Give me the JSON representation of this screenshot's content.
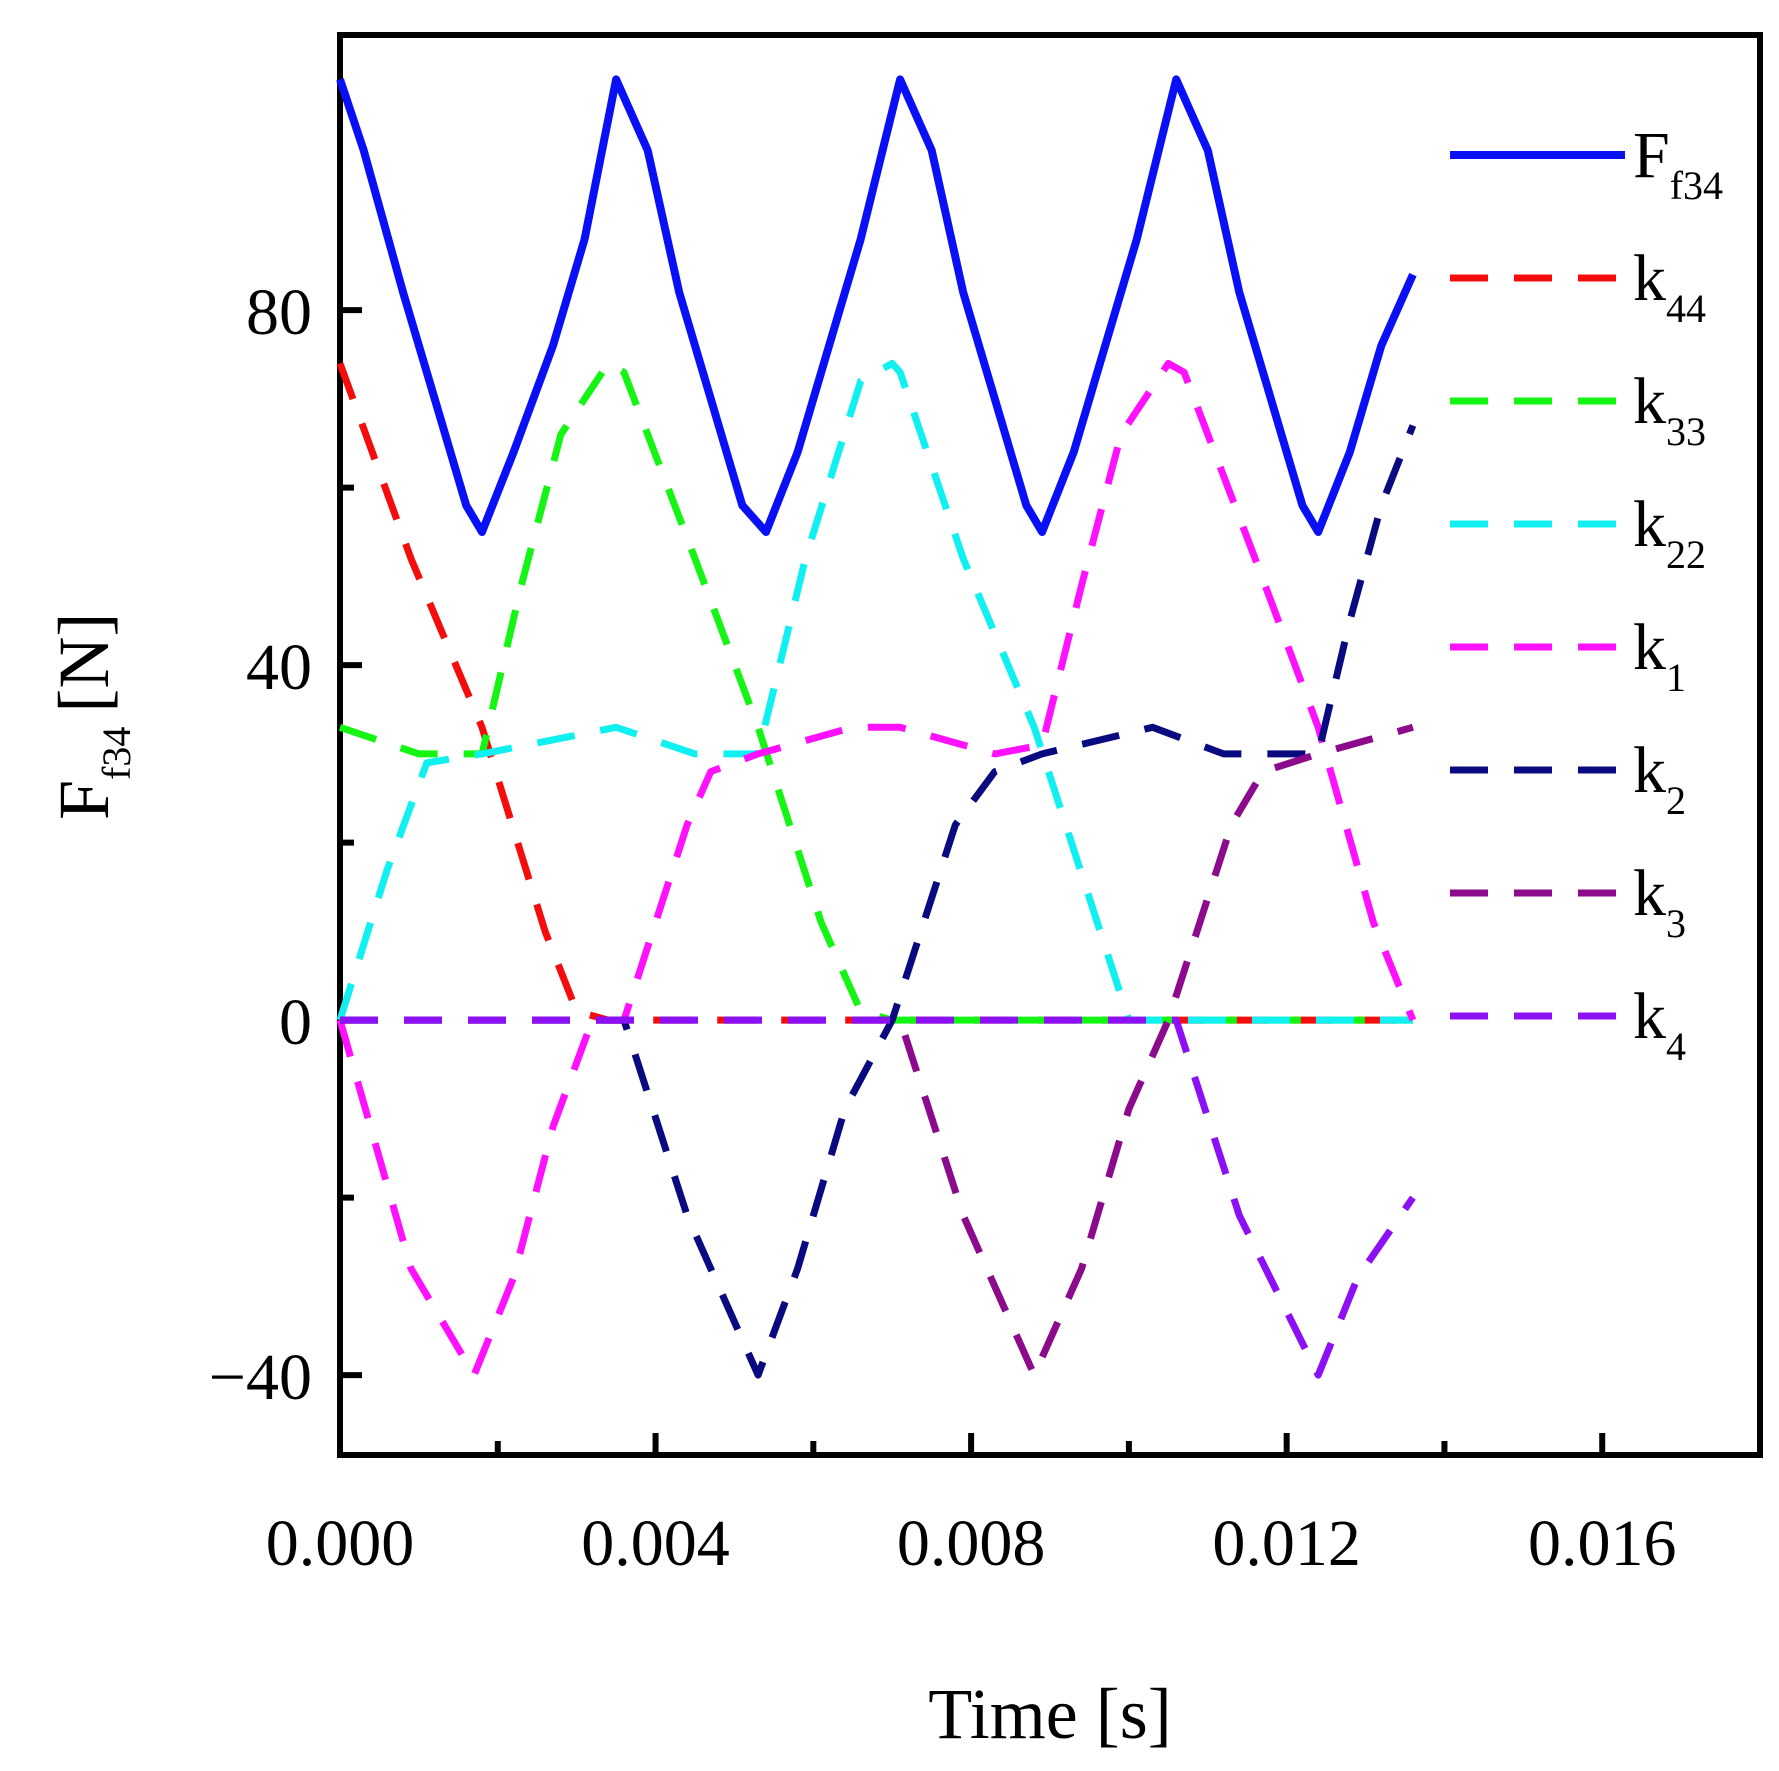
{
  "chart_data": {
    "type": "line",
    "title": "",
    "xlabel": "Time [s]",
    "ylabel": {
      "base": "F",
      "sub": "f34",
      "unit": "[N]"
    },
    "xlim": [
      0,
      0.018
    ],
    "ylim": [
      -49,
      111
    ],
    "xticks": [
      0,
      0.004,
      0.008,
      0.012,
      0.016
    ],
    "xtick_labels": [
      "0.000",
      "0.004",
      "0.008",
      "0.012",
      "0.016"
    ],
    "xticks_minor": [
      0.002,
      0.006,
      0.01,
      0.014
    ],
    "yticks": [
      -40,
      0,
      40,
      80
    ],
    "ytick_labels": [
      "−40",
      "0",
      "40",
      "80"
    ],
    "yticks_minor": [
      -20,
      20,
      60
    ],
    "grid": false,
    "legend_position": "top-right",
    "series": [
      {
        "name": "F",
        "sub": "f34",
        "color": "#0a10f5",
        "style": "solid",
        "points": [
          [
            0,
            106
          ],
          [
            0.0003,
            98
          ],
          [
            0.0008,
            82
          ],
          [
            0.0012,
            70
          ],
          [
            0.0016,
            58
          ],
          [
            0.0018,
            55
          ],
          [
            0.0022,
            64
          ],
          [
            0.0027,
            76
          ],
          [
            0.0031,
            88
          ],
          [
            0.0035,
            106
          ],
          [
            0.0039,
            98
          ],
          [
            0.0043,
            82
          ],
          [
            0.0047,
            70
          ],
          [
            0.0051,
            58
          ],
          [
            0.0054,
            55
          ],
          [
            0.0058,
            64
          ],
          [
            0.0062,
            76
          ],
          [
            0.0066,
            88
          ],
          [
            0.0071,
            106
          ],
          [
            0.0075,
            98
          ],
          [
            0.0079,
            82
          ],
          [
            0.0083,
            70
          ],
          [
            0.0087,
            58
          ],
          [
            0.0089,
            55
          ],
          [
            0.0093,
            64
          ],
          [
            0.0097,
            76
          ],
          [
            0.0101,
            88
          ],
          [
            0.0106,
            106
          ],
          [
            0.011,
            98
          ],
          [
            0.0114,
            82
          ],
          [
            0.0118,
            70
          ],
          [
            0.0122,
            58
          ],
          [
            0.0124,
            55
          ],
          [
            0.0128,
            64
          ],
          [
            0.0132,
            76
          ],
          [
            0.0136,
            84
          ]
        ]
      },
      {
        "name": "k",
        "sub": "44",
        "color": "#f50c0c",
        "style": "dashed",
        "points": [
          [
            0,
            74
          ],
          [
            0.0009,
            52
          ],
          [
            0.0018,
            33
          ],
          [
            0.0026,
            10
          ],
          [
            0.003,
            1
          ],
          [
            0.0034,
            0
          ],
          [
            0.0136,
            0
          ]
        ]
      },
      {
        "name": "k",
        "sub": "33",
        "color": "#14f514",
        "style": "dashed",
        "points": [
          [
            0,
            33
          ],
          [
            0.001,
            30
          ],
          [
            0.0018,
            30
          ],
          [
            0.0023,
            49
          ],
          [
            0.0028,
            66
          ],
          [
            0.0034,
            74
          ],
          [
            0.0036,
            73
          ],
          [
            0.0045,
            52
          ],
          [
            0.0053,
            33
          ],
          [
            0.0061,
            11
          ],
          [
            0.0066,
            1
          ],
          [
            0.007,
            0
          ],
          [
            0.0136,
            0
          ]
        ]
      },
      {
        "name": "k",
        "sub": "22",
        "color": "#10f0f0",
        "style": "dashed",
        "points": [
          [
            0,
            0
          ],
          [
            0.0006,
            17
          ],
          [
            0.0011,
            29
          ],
          [
            0.0018,
            30
          ],
          [
            0.0035,
            33
          ],
          [
            0.0045,
            30
          ],
          [
            0.0053,
            30
          ],
          [
            0.0059,
            52
          ],
          [
            0.0066,
            72
          ],
          [
            0.007,
            74
          ],
          [
            0.0071,
            73
          ],
          [
            0.0079,
            52
          ],
          [
            0.0088,
            33
          ],
          [
            0.0096,
            11
          ],
          [
            0.01,
            0
          ],
          [
            0.0136,
            0
          ]
        ]
      },
      {
        "name": "k",
        "sub": "1",
        "color": "#ff10ff",
        "style": "dashed",
        "points": [
          [
            0,
            0
          ],
          [
            0.0009,
            -28
          ],
          [
            0.0017,
            -40
          ],
          [
            0.0022,
            -29
          ],
          [
            0.0027,
            -12
          ],
          [
            0.0032,
            0
          ],
          [
            0.0036,
            0
          ],
          [
            0.0044,
            22
          ],
          [
            0.0047,
            28
          ],
          [
            0.0053,
            30
          ],
          [
            0.0065,
            33
          ],
          [
            0.0071,
            33
          ],
          [
            0.0083,
            30
          ],
          [
            0.0089,
            31
          ],
          [
            0.0094,
            49
          ],
          [
            0.0099,
            66
          ],
          [
            0.0105,
            74
          ],
          [
            0.0107,
            73
          ],
          [
            0.0116,
            52
          ],
          [
            0.0124,
            33
          ],
          [
            0.0131,
            11
          ],
          [
            0.0136,
            0
          ]
        ]
      },
      {
        "name": "k",
        "sub": "2",
        "color": "#0a0a80",
        "style": "dashed",
        "points": [
          [
            0,
            0
          ],
          [
            0.0036,
            0
          ],
          [
            0.0044,
            -22
          ],
          [
            0.0053,
            -40
          ],
          [
            0.0058,
            -28
          ],
          [
            0.0064,
            -10
          ],
          [
            0.007,
            0
          ],
          [
            0.0078,
            22
          ],
          [
            0.0083,
            28
          ],
          [
            0.0089,
            30
          ],
          [
            0.0103,
            33
          ],
          [
            0.0112,
            30
          ],
          [
            0.0124,
            30
          ],
          [
            0.0128,
            45
          ],
          [
            0.0132,
            58
          ],
          [
            0.0136,
            67
          ]
        ]
      },
      {
        "name": "k",
        "sub": "3",
        "color": "#8c0a8c",
        "style": "dashed",
        "points": [
          [
            0,
            0
          ],
          [
            0.0071,
            0
          ],
          [
            0.0079,
            -22
          ],
          [
            0.0088,
            -40
          ],
          [
            0.0094,
            -28
          ],
          [
            0.01,
            -10
          ],
          [
            0.0105,
            0
          ],
          [
            0.0113,
            22
          ],
          [
            0.0117,
            28
          ],
          [
            0.0124,
            30
          ],
          [
            0.0136,
            33
          ]
        ]
      },
      {
        "name": "k",
        "sub": "4",
        "color": "#8c10f5",
        "style": "dashed",
        "points": [
          [
            0,
            0
          ],
          [
            0.0106,
            0
          ],
          [
            0.0114,
            -22
          ],
          [
            0.0124,
            -40
          ],
          [
            0.0129,
            -29
          ],
          [
            0.0136,
            -20
          ]
        ]
      }
    ]
  }
}
